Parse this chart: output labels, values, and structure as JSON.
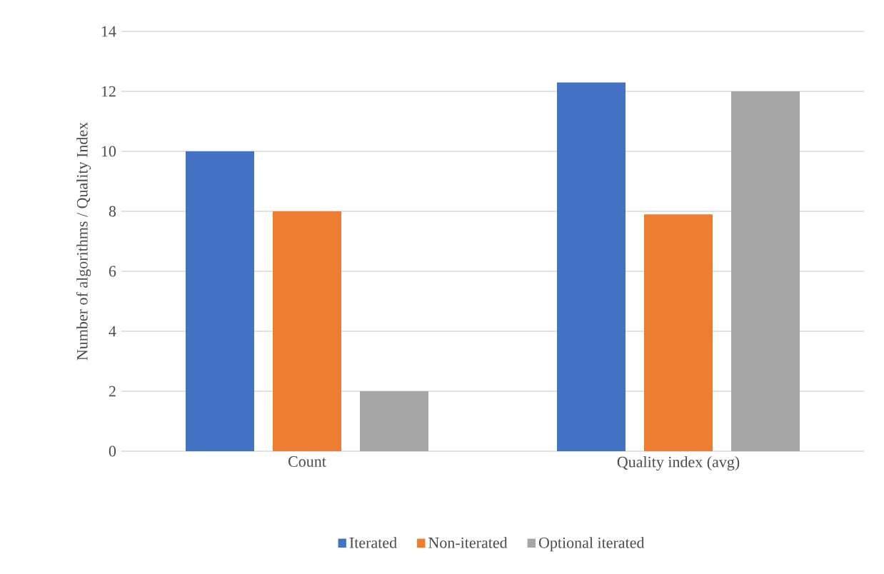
{
  "chart_data": {
    "type": "bar",
    "ylabel": "Number of algorithms / Quality Index",
    "categories": [
      "Count",
      "Quality index (avg)"
    ],
    "series": [
      {
        "name": "Iterated",
        "color": "#4472c4",
        "values": [
          10,
          12.3
        ]
      },
      {
        "name": "Non-iterated",
        "color": "#ed7d31",
        "values": [
          8,
          7.9
        ]
      },
      {
        "name": "Optional iterated",
        "color": "#a5a5a5",
        "values": [
          2,
          12
        ]
      }
    ],
    "ylim": [
      0,
      14
    ],
    "yticks": [
      0,
      2,
      4,
      6,
      8,
      10,
      12,
      14
    ],
    "grid": "y",
    "legend": "bottom"
  }
}
